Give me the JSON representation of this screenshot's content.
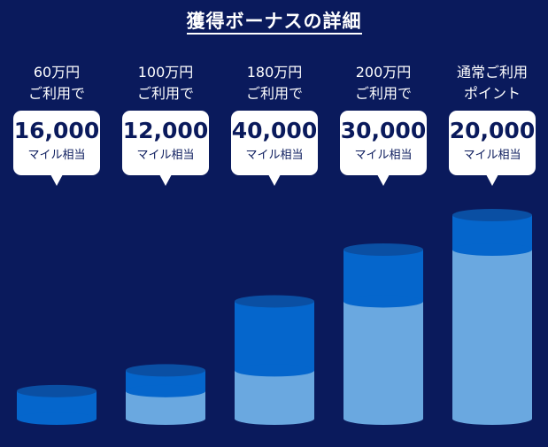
{
  "title": "獲得ボーナスの詳細",
  "chart_data": {
    "type": "bar",
    "title": "獲得ボーナスの詳細",
    "categories": [
      [
        "60万円",
        "ご利用で"
      ],
      [
        "100万円",
        "ご利用で"
      ],
      [
        "180万円",
        "ご利用で"
      ],
      [
        "200万円",
        "ご利用で"
      ],
      [
        "通常ご利用",
        "ポイント"
      ]
    ],
    "values": [
      16000,
      12000,
      40000,
      30000,
      20000
    ],
    "value_labels": [
      "16,000",
      "12,000",
      "40,000",
      "30,000",
      "20,000"
    ],
    "unit_label": "マイル相当",
    "cumulative_totals": [
      16000,
      28000,
      68000,
      98000,
      118000
    ],
    "colors": {
      "background": "#0a1a5c",
      "base_segment": "#6aa8e0",
      "new_segment": "#0566cc",
      "new_segment_top": "#0a4fa3"
    }
  }
}
